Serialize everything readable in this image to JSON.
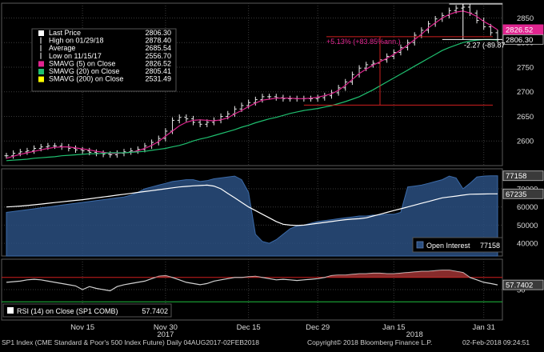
{
  "chart_data": [
    {
      "type": "line",
      "panel": "price",
      "legend": [
        {
          "label": "Last Price",
          "value": "2806.30"
        },
        {
          "label": "High on 01/29/18",
          "value": "2878.40"
        },
        {
          "label": "Average",
          "value": "2685.54"
        },
        {
          "label": "Low on 11/15/17",
          "value": "2556.70"
        },
        {
          "label": "SMAVG (5) on Close",
          "value": "2826.52",
          "color": "#e0258f"
        },
        {
          "label": "SMAVG (20) on Close",
          "value": "2805.41",
          "color": "#1fbf6f"
        },
        {
          "label": "SMAVG (200) on Close",
          "value": "2531.49",
          "color": "#ffff00"
        }
      ],
      "ylim": [
        2550,
        2880
      ],
      "yticks": [
        2600,
        2650,
        2700,
        2750,
        2800,
        2850
      ],
      "price_tags": [
        {
          "text": "2826.52",
          "value": 2826.52,
          "color": "#e0258f"
        },
        {
          "text": "2806.30",
          "value": 2806.3,
          "color": "#ffffff"
        }
      ],
      "annotations": [
        {
          "text": "+5.13% (+83.85%ann.)",
          "color": "#e0258f"
        },
        {
          "text": "-2.27 (-89.87",
          "color": "#ffffff"
        }
      ],
      "series": [
        {
          "name": "SP1 Index",
          "kind": "candles",
          "color": "#ffffff",
          "values": [
            2570,
            2575,
            2578,
            2580,
            2585,
            2588,
            2590,
            2590,
            2588,
            2585,
            2582,
            2580,
            2577,
            2575,
            2573,
            2572,
            2575,
            2578,
            2580,
            2583,
            2590,
            2597,
            2605,
            2620,
            2642,
            2648,
            2645,
            2638,
            2634,
            2638,
            2642,
            2650,
            2655,
            2665,
            2672,
            2678,
            2684,
            2690,
            2690,
            2688,
            2686,
            2686,
            2686,
            2686,
            2686,
            2688,
            2692,
            2698,
            2708,
            2720,
            2735,
            2748,
            2755,
            2758,
            2765,
            2772,
            2780,
            2790,
            2800,
            2815,
            2825,
            2838,
            2848,
            2855,
            2865,
            2870,
            2872,
            2860,
            2845,
            2832,
            2820,
            2806
          ]
        },
        {
          "name": "SMAVG (5) on Close",
          "kind": "line",
          "color": "#e0258f",
          "values": [
            2565,
            2569,
            2573,
            2576,
            2579,
            2582,
            2585,
            2587,
            2588,
            2588,
            2586,
            2584,
            2582,
            2579,
            2577,
            2575,
            2575,
            2576,
            2577,
            2580,
            2585,
            2591,
            2599,
            2610,
            2620,
            2631,
            2638,
            2642,
            2643,
            2642,
            2641,
            2643,
            2647,
            2655,
            2662,
            2670,
            2677,
            2683,
            2685,
            2687,
            2687,
            2687,
            2686,
            2686,
            2687,
            2689,
            2692,
            2696,
            2703,
            2713,
            2725,
            2737,
            2746,
            2754,
            2761,
            2768,
            2776,
            2785,
            2795,
            2806,
            2817,
            2830,
            2840,
            2850,
            2857,
            2862,
            2864,
            2860,
            2853,
            2843,
            2835,
            2826
          ]
        },
        {
          "name": "SMAVG (20) on Close",
          "kind": "line",
          "color": "#1fbf6f",
          "values": [
            2560,
            2561,
            2562,
            2563,
            2565,
            2566,
            2567,
            2568,
            2570,
            2571,
            2572,
            2573,
            2574,
            2574,
            2575,
            2576,
            2576,
            2576,
            2577,
            2578,
            2579,
            2581,
            2583,
            2585,
            2588,
            2591,
            2595,
            2600,
            2604,
            2607,
            2611,
            2615,
            2619,
            2623,
            2628,
            2632,
            2637,
            2641,
            2645,
            2648,
            2652,
            2656,
            2659,
            2662,
            2664,
            2666,
            2669,
            2672,
            2676,
            2680,
            2685,
            2690,
            2697,
            2704,
            2712,
            2720,
            2728,
            2736,
            2744,
            2752,
            2760,
            2768,
            2776,
            2784,
            2790,
            2795,
            2800,
            2803,
            2805,
            2806,
            2806,
            2805.41
          ]
        }
      ]
    },
    {
      "type": "area",
      "panel": "open-interest",
      "legend": [
        {
          "label": "Open Interest",
          "value": "77158"
        }
      ],
      "ylim": [
        33000,
        81000
      ],
      "yticks": [
        40000,
        50000,
        60000,
        70000
      ],
      "price_tags": [
        {
          "text": "77158",
          "value": 77158
        },
        {
          "text": "67235",
          "value": 67235
        }
      ],
      "series": [
        {
          "name": "Open Interest",
          "kind": "area",
          "color": "#2a4f80",
          "values": [
            57000,
            57500,
            58000,
            58500,
            59000,
            59500,
            60000,
            60500,
            61000,
            61500,
            62000,
            62500,
            63000,
            63500,
            64000,
            64500,
            65000,
            65500,
            66500,
            68000,
            70000,
            71000,
            72000,
            73000,
            74000,
            74500,
            75000,
            75000,
            74000,
            74500,
            75500,
            76000,
            76500,
            77000,
            75000,
            68000,
            45000,
            41000,
            40000,
            42000,
            45000,
            48000,
            49500,
            50000,
            51000,
            52000,
            52500,
            53000,
            53500,
            54000,
            54500,
            55000,
            55000,
            55500,
            55500,
            56000,
            56000,
            57000,
            71000,
            71500,
            72000,
            73000,
            74000,
            75000,
            77000,
            76000,
            70000,
            73000,
            76500,
            77000,
            77158,
            77158
          ]
        },
        {
          "name": "",
          "kind": "line",
          "color": "#ffffff",
          "values": [
            60000,
            60200,
            60500,
            60800,
            61200,
            61600,
            62000,
            62400,
            62800,
            63200,
            63600,
            64000,
            64500,
            65000,
            65500,
            66000,
            66500,
            67000,
            67500,
            68000,
            68500,
            69000,
            69500,
            70000,
            70500,
            71000,
            71300,
            71600,
            71800,
            72000,
            71500,
            70000,
            67500,
            65000,
            62500,
            60000,
            58000,
            56000,
            54000,
            52000,
            50500,
            50000,
            49800,
            50000,
            50500,
            51000,
            51500,
            52000,
            52500,
            53000,
            53300,
            53500,
            54000,
            55000,
            56000,
            57000,
            58000,
            59000,
            60000,
            61000,
            62000,
            63000,
            64000,
            65000,
            65500,
            66000,
            66500,
            67000,
            67100,
            67150,
            67200,
            67235
          ]
        }
      ]
    },
    {
      "type": "area",
      "panel": "rsi",
      "legend": [
        {
          "label": "RSI (14) on Close (SP1 COMB)",
          "value": "57.7402"
        }
      ],
      "ylim": [
        0,
        100
      ],
      "yticks": [
        50
      ],
      "price_tags": [
        {
          "text": "57.7402",
          "value": 57.7402
        }
      ],
      "reference_lines": [
        {
          "value": 70,
          "color": "#d11f1f"
        },
        {
          "value": 30,
          "color": "#1fbf3f"
        }
      ],
      "series": [
        {
          "name": "RSI (14) on Close (SP1 COMB)",
          "kind": "line",
          "color": "#d0d0d0",
          "values": [
            62,
            63,
            64,
            66,
            67,
            66,
            64,
            62,
            60,
            58,
            56,
            50,
            55,
            52,
            50,
            48,
            55,
            58,
            60,
            62,
            64,
            68,
            72,
            73,
            70,
            66,
            62,
            60,
            58,
            60,
            64,
            66,
            68,
            70,
            70,
            71,
            72,
            70,
            68,
            66,
            67,
            66,
            65,
            66,
            67,
            68,
            70,
            73,
            74,
            74,
            75,
            76,
            76,
            77,
            77,
            76,
            76,
            77,
            78,
            79,
            80,
            80,
            81,
            82,
            82,
            80,
            78,
            70,
            66,
            62,
            60,
            57.7402
          ]
        }
      ]
    }
  ],
  "x_axis": {
    "ticks": [
      {
        "label": "Nov 15",
        "index": 11
      },
      {
        "label": "Nov 30",
        "index": 23
      },
      {
        "label": "Dec 15",
        "index": 35
      },
      {
        "label": "Dec 29",
        "index": 45
      },
      {
        "label": "Jan 15",
        "index": 56
      },
      {
        "label": "Jan 31",
        "index": 69
      }
    ],
    "years": [
      {
        "label": "2017",
        "index": 23
      },
      {
        "label": "2018",
        "index": 59
      }
    ]
  },
  "footer": {
    "left": "SP1 Index (CME Standard & Poor's 500 Index Future)  Daily 04AUG2017-02FEB2018",
    "center": "Copyright© 2018 Bloomberg Finance L.P.",
    "right": "02-Feb-2018 09:24:51"
  }
}
